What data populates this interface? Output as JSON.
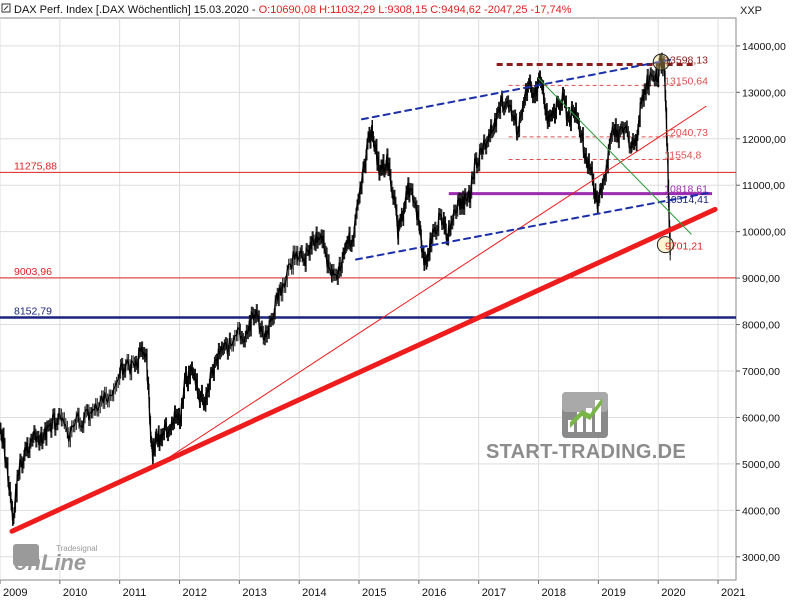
{
  "header": {
    "title": "DAX Perf. Index [.DAX  Wöchentlich] 15.03.2020 -",
    "ohlc": "O:10690,08 H:11032,29 L:9308,15 C:9494,62 -2047,25 -17,74%"
  },
  "axis": {
    "currency": "XXP"
  },
  "watermark": {
    "brand": "START-TRADING.DE"
  },
  "logo": {
    "brand_main": "onLine",
    "brand_sub": "Tradesignal"
  },
  "chart_data": {
    "type": "line",
    "title": "DAX Perf. Index [.DAX  Wöchentlich] 15.03.2020",
    "x_ticks": [
      "2009",
      "2010",
      "2011",
      "2012",
      "2013",
      "2014",
      "2015",
      "2016",
      "2017",
      "2018",
      "2019",
      "2020",
      "2021"
    ],
    "xlim": [
      2009.0,
      2021.3
    ],
    "y_ticks": [
      "3000,00",
      "4000,00",
      "5000,00",
      "6000,00",
      "7000,00",
      "8000,00",
      "9000,00",
      "10000,00",
      "11000,00",
      "12000,00",
      "13000,00",
      "14000,00"
    ],
    "ylim": [
      2500,
      14600
    ],
    "grid": true,
    "series": [
      {
        "x": [
          2008.95,
          2009.05,
          2009.15,
          2009.22,
          2009.3,
          2009.4,
          2009.5,
          2009.6,
          2009.7,
          2009.8,
          2009.9,
          2010.0,
          2010.15,
          2010.3,
          2010.42,
          2010.55,
          2010.7,
          2010.85,
          2011.0,
          2011.1,
          2011.25,
          2011.35,
          2011.45,
          2011.5,
          2011.55,
          2011.62,
          2011.7,
          2011.8,
          2011.9,
          2012.0,
          2012.1,
          2012.2,
          2012.3,
          2012.4,
          2012.45,
          2012.55,
          2012.65,
          2012.75,
          2012.85,
          2013.0,
          2013.1,
          2013.2,
          2013.3,
          2013.4,
          2013.5,
          2013.6,
          2013.7,
          2013.85,
          2014.0,
          2014.1,
          2014.2,
          2014.3,
          2014.4,
          2014.5,
          2014.62,
          2014.72,
          2014.8,
          2014.9,
          2015.0,
          2015.1,
          2015.2,
          2015.25,
          2015.35,
          2015.45,
          2015.55,
          2015.65,
          2015.72,
          2015.8,
          2015.9,
          2016.0,
          2016.05,
          2016.12,
          2016.2,
          2016.3,
          2016.4,
          2016.47,
          2016.55,
          2016.65,
          2016.75,
          2016.85,
          2016.95,
          2017.05,
          2017.15,
          2017.25,
          2017.35,
          2017.45,
          2017.55,
          2017.65,
          2017.75,
          2017.85,
          2017.95,
          2018.05,
          2018.12,
          2018.2,
          2018.3,
          2018.4,
          2018.5,
          2018.6,
          2018.7,
          2018.8,
          2018.9,
          2018.97,
          2019.05,
          2019.15,
          2019.25,
          2019.35,
          2019.45,
          2019.55,
          2019.62,
          2019.7,
          2019.8,
          2019.9,
          2020.0,
          2020.05,
          2020.1,
          2020.15,
          2020.2
        ],
        "y": [
          6200,
          5500,
          4600,
          3800,
          4800,
          5200,
          5400,
          5600,
          5500,
          5800,
          5900,
          5950,
          5600,
          5900,
          6000,
          6200,
          6300,
          6500,
          6900,
          7200,
          7000,
          7400,
          7300,
          6000,
          5200,
          5600,
          5500,
          5800,
          6000,
          5900,
          6800,
          7000,
          6600,
          6300,
          6500,
          7000,
          7300,
          7400,
          7600,
          7800,
          7700,
          8100,
          8200,
          7800,
          8000,
          8400,
          8700,
          9300,
          9600,
          9400,
          9700,
          9900,
          9800,
          9200,
          9100,
          9300,
          9800,
          9900,
          10800,
          11500,
          12200,
          12000,
          11200,
          11600,
          11000,
          10000,
          10300,
          10900,
          10700,
          10200,
          9600,
          9300,
          9800,
          10200,
          10300,
          9800,
          10300,
          10600,
          10600,
          10800,
          11500,
          11700,
          12100,
          12300,
          12700,
          12800,
          12500,
          12200,
          12800,
          13100,
          13000,
          13300,
          12500,
          12400,
          12700,
          12900,
          12400,
          12600,
          12200,
          11500,
          11200,
          10600,
          11000,
          11500,
          12200,
          12000,
          12300,
          11800,
          11900,
          12600,
          13200,
          13300,
          13400,
          13700,
          13600,
          11800,
          9500
        ]
      }
    ],
    "horizontal_lines": [
      {
        "value": 13598.13,
        "label": "13598,13",
        "color": "#8b1a1a",
        "style": "dashed-thick"
      },
      {
        "value": 13150.64,
        "label": "13150,64",
        "color": "#e05050",
        "style": "dashed"
      },
      {
        "value": 12040.73,
        "label": "12040,73",
        "color": "#e05050",
        "style": "dashed"
      },
      {
        "value": 11554.8,
        "label": "11554,8",
        "color": "#e05050",
        "style": "dashed"
      },
      {
        "value": 11275.88,
        "label": "11275,88",
        "color": "#e02020",
        "style": "solid"
      },
      {
        "value": 10818.61,
        "label": "10818,61",
        "color": "#9b2bb0",
        "style": "solid-thick"
      },
      {
        "value": 9003.96,
        "label": "9003,96",
        "color": "#e02020",
        "style": "solid"
      },
      {
        "value": 8152.79,
        "label": "8152,79",
        "color": "#1a237e",
        "style": "solid-thick"
      }
    ],
    "annotations": [
      {
        "label": "10514,41",
        "x": 2020.08,
        "y": 10700,
        "color": "#1a237e"
      },
      {
        "label": "9701,21",
        "x": 2020.08,
        "y": 9700,
        "color": "#e02020"
      }
    ],
    "trendlines": [
      {
        "name": "main-support",
        "from": [
          2009.2,
          3550
        ],
        "to": [
          2020.95,
          10480
        ],
        "color": "#ee1c1c",
        "width": 5,
        "dash": ""
      },
      {
        "name": "thin-support",
        "from": [
          2011.6,
          4950
        ],
        "to": [
          2020.8,
          12700
        ],
        "color": "#ee1c1c",
        "width": 1,
        "dash": ""
      },
      {
        "name": "channel-upper",
        "from": [
          2015.05,
          12420
        ],
        "to": [
          2020.2,
          13700
        ],
        "color": "#1a2fa8",
        "width": 2,
        "dash": "6,5"
      },
      {
        "name": "channel-lower",
        "from": [
          2014.95,
          9400
        ],
        "to": [
          2020.9,
          10850
        ],
        "color": "#1a2fa8",
        "width": 2,
        "dash": "6,5"
      },
      {
        "name": "green-line",
        "from": [
          2018.0,
          13300
        ],
        "to": [
          2020.55,
          9950
        ],
        "color": "#2e9c3a",
        "width": 1,
        "dash": ""
      }
    ],
    "circles": [
      {
        "x": 2020.05,
        "y": 13650,
        "label": "top"
      },
      {
        "x": 2020.12,
        "y": 9720,
        "label": "bottom"
      }
    ]
  }
}
